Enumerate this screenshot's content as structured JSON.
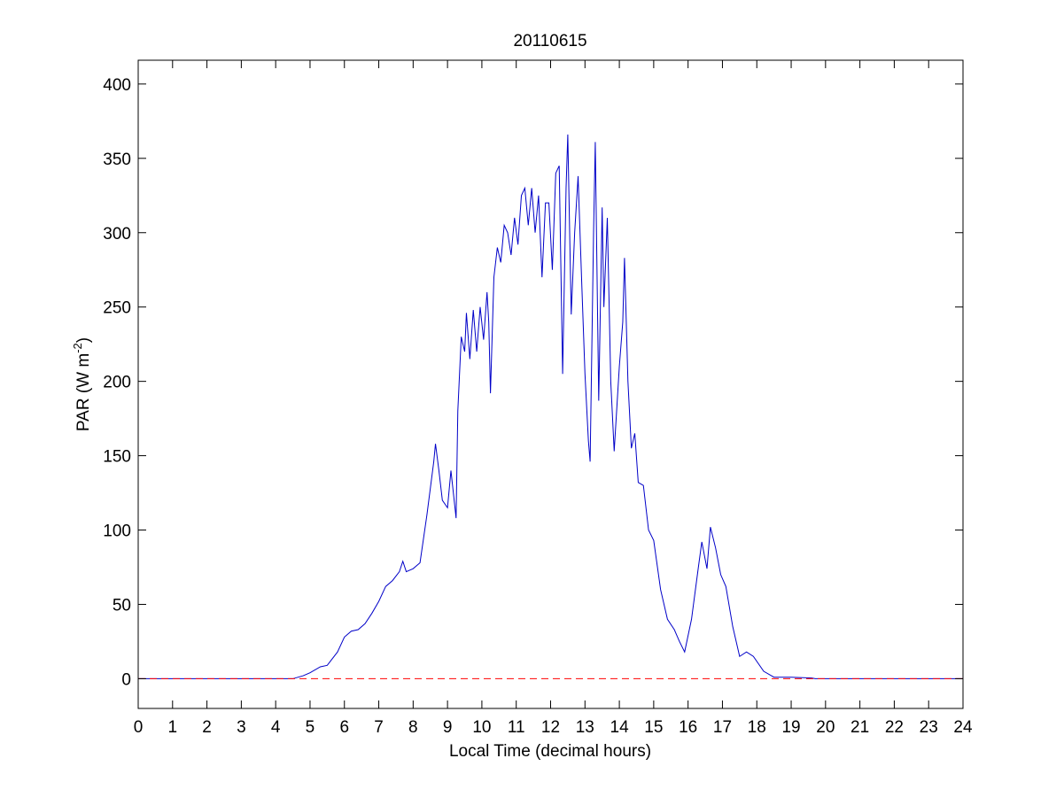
{
  "chart_data": {
    "type": "line",
    "title": "20110615",
    "xlabel": "Local Time (decimal hours)",
    "ylabel_parts": [
      "PAR (W m",
      "-2",
      ")"
    ],
    "xlim": [
      0,
      24
    ],
    "ylim": [
      -20,
      416
    ],
    "xticks": [
      0,
      1,
      2,
      3,
      4,
      5,
      6,
      7,
      8,
      9,
      10,
      11,
      12,
      13,
      14,
      15,
      16,
      17,
      18,
      19,
      20,
      21,
      22,
      23,
      24
    ],
    "yticks": [
      0,
      50,
      100,
      150,
      200,
      250,
      300,
      350,
      400
    ],
    "box": true,
    "series": [
      {
        "color": "#0000c8",
        "linestyle": "solid",
        "x": [
          0,
          4.5,
          4.8,
          5,
          5.3,
          5.5,
          5.8,
          6,
          6.2,
          6.4,
          6.6,
          6.8,
          7,
          7.2,
          7.4,
          7.6,
          7.7,
          7.8,
          8,
          8.2,
          8.4,
          8.5,
          8.6,
          8.65,
          8.75,
          8.85,
          9,
          9.1,
          9.25,
          9.3,
          9.4,
          9.5,
          9.55,
          9.65,
          9.75,
          9.85,
          9.95,
          10.05,
          10.15,
          10.2,
          10.25,
          10.35,
          10.45,
          10.55,
          10.65,
          10.75,
          10.85,
          10.95,
          11.05,
          11.15,
          11.25,
          11.35,
          11.45,
          11.55,
          11.65,
          11.75,
          11.85,
          11.95,
          12.05,
          12.15,
          12.25,
          12.35,
          12.45,
          12.5,
          12.6,
          12.7,
          12.8,
          12.9,
          13,
          13.1,
          13.15,
          13.25,
          13.3,
          13.4,
          13.5,
          13.55,
          13.65,
          13.75,
          13.85,
          14,
          14.1,
          14.15,
          14.25,
          14.35,
          14.45,
          14.55,
          14.7,
          14.85,
          15,
          15.2,
          15.4,
          15.6,
          15.75,
          15.9,
          16.1,
          16.3,
          16.4,
          16.55,
          16.65,
          16.8,
          16.95,
          17.1,
          17.3,
          17.5,
          17.7,
          17.9,
          18.2,
          18.5,
          19,
          19.6,
          19.7,
          24
        ],
        "values": [
          0,
          0,
          2,
          4,
          8,
          9,
          18,
          28,
          32,
          33,
          37,
          44,
          52,
          62,
          66,
          72,
          79,
          72,
          74,
          78,
          110,
          128,
          146,
          158,
          140,
          120,
          115,
          140,
          108,
          180,
          230,
          220,
          246,
          215,
          248,
          220,
          250,
          228,
          260,
          240,
          192,
          270,
          290,
          280,
          305,
          300,
          285,
          310,
          292,
          325,
          330,
          305,
          330,
          300,
          325,
          270,
          320,
          320,
          275,
          340,
          345,
          205,
          330,
          366,
          245,
          300,
          338,
          270,
          205,
          160,
          146,
          300,
          361,
          187,
          317,
          250,
          310,
          200,
          153,
          210,
          240,
          283,
          200,
          155,
          165,
          132,
          130,
          100,
          93,
          60,
          40,
          33,
          25,
          18,
          40,
          75,
          92,
          74,
          102,
          88,
          70,
          62,
          35,
          15,
          18,
          15,
          5,
          1,
          1,
          0.5,
          0,
          0
        ]
      },
      {
        "color": "#ff0000",
        "linestyle": "dashed",
        "x": [
          0,
          24
        ],
        "values": [
          0,
          0
        ]
      }
    ]
  }
}
